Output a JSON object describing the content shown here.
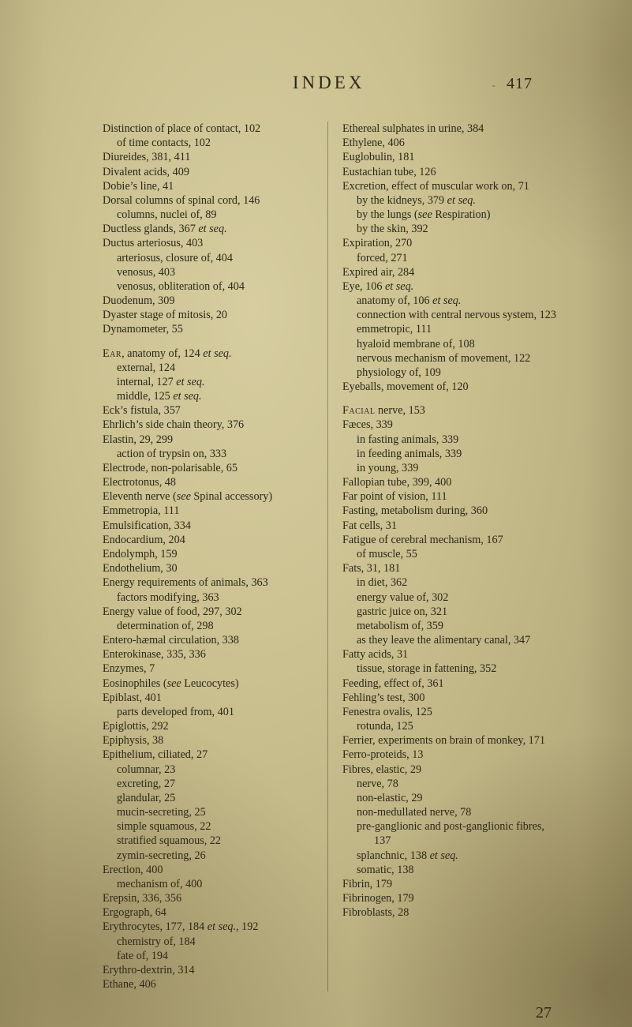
{
  "header": {
    "title": "INDEX",
    "dash": "-",
    "pagenum": "417"
  },
  "signature": "27",
  "left": [
    {
      "t": "e",
      "x": "Distinction of place of contact, 102"
    },
    {
      "t": "s1",
      "x": "of time contacts, 102"
    },
    {
      "t": "e",
      "x": "Diureides, 381, 411"
    },
    {
      "t": "e",
      "x": "Divalent acids, 409"
    },
    {
      "t": "e",
      "x": "Dobie’s line, 41"
    },
    {
      "t": "e",
      "x": "Dorsal columns of spinal cord, 146"
    },
    {
      "t": "s1",
      "x": "columns, nuclei of, 89"
    },
    {
      "t": "e",
      "x": "Ductless glands, 367 <em>et seq.</em>"
    },
    {
      "t": "e",
      "x": "Ductus arteriosus, 403"
    },
    {
      "t": "s1",
      "x": "arteriosus, closure of, 404"
    },
    {
      "t": "s1",
      "x": "venosus, 403"
    },
    {
      "t": "s1",
      "x": "venosus, obliteration of, 404"
    },
    {
      "t": "e",
      "x": "Duodenum, 309"
    },
    {
      "t": "e",
      "x": "Dyaster stage of mitosis, 20"
    },
    {
      "t": "e",
      "x": "Dynamometer, 55"
    },
    {
      "t": "gap"
    },
    {
      "t": "e",
      "x": "<span class=\"sc\">Ear</span>, anatomy of, 124 <em>et seq.</em>"
    },
    {
      "t": "s1",
      "x": "external, 124"
    },
    {
      "t": "s1",
      "x": "internal, 127 <em>et seq.</em>"
    },
    {
      "t": "s1",
      "x": "middle, 125 <em>et seq.</em>"
    },
    {
      "t": "e",
      "x": "Eck’s fistula, 357"
    },
    {
      "t": "e",
      "x": "Ehrlich’s side chain theory, 376"
    },
    {
      "t": "e",
      "x": "Elastin, 29, 299"
    },
    {
      "t": "s1",
      "x": "action of trypsin on, 333"
    },
    {
      "t": "e",
      "x": "Electrode, non-polarisable, 65"
    },
    {
      "t": "e",
      "x": "Electrotonus, 48"
    },
    {
      "t": "e",
      "x": "Eleventh nerve (<em>see</em> Spinal accessory)"
    },
    {
      "t": "e",
      "x": "Emmetropia, 111"
    },
    {
      "t": "e",
      "x": "Emulsification, 334"
    },
    {
      "t": "e",
      "x": "Endocardium, 204"
    },
    {
      "t": "e",
      "x": "Endolymph, 159"
    },
    {
      "t": "e",
      "x": "Endothelium, 30"
    },
    {
      "t": "e",
      "x": "Energy requirements of animals, 363"
    },
    {
      "t": "s1",
      "x": "factors modifying, 363"
    },
    {
      "t": "e",
      "x": "Energy value of food, 297, 302"
    },
    {
      "t": "s1",
      "x": "determination of, 298"
    },
    {
      "t": "e",
      "x": "Entero-hæmal circulation, 338"
    },
    {
      "t": "e",
      "x": "Enterokinase, 335, 336"
    },
    {
      "t": "e",
      "x": "Enzymes, 7"
    },
    {
      "t": "e",
      "x": "Eosinophiles (<em>see</em> Leucocytes)"
    },
    {
      "t": "e",
      "x": "Epiblast, 401"
    },
    {
      "t": "s1",
      "x": "parts developed from, 401"
    },
    {
      "t": "e",
      "x": "Epiglottis, 292"
    },
    {
      "t": "e",
      "x": "Epiphysis, 38"
    },
    {
      "t": "e",
      "x": "Epithelium, ciliated, 27"
    },
    {
      "t": "s1",
      "x": "columnar, 23"
    },
    {
      "t": "s1",
      "x": "excreting, 27"
    },
    {
      "t": "s1",
      "x": "glandular, 25"
    },
    {
      "t": "s1",
      "x": "mucin-secreting, 25"
    },
    {
      "t": "s1",
      "x": "simple squamous, 22"
    },
    {
      "t": "s1",
      "x": "stratified squamous, 22"
    },
    {
      "t": "s1",
      "x": "zymin-secreting, 26"
    },
    {
      "t": "e",
      "x": "Erection, 400"
    },
    {
      "t": "s1",
      "x": "mechanism of, 400"
    },
    {
      "t": "e",
      "x": "Erepsin, 336, 356"
    },
    {
      "t": "e",
      "x": "Ergograph, 64"
    },
    {
      "t": "e",
      "x": "Erythrocytes, 177, 184 <em>et seq.</em>, 192"
    },
    {
      "t": "s1",
      "x": "chemistry of, 184"
    },
    {
      "t": "s1",
      "x": "fate of, 194"
    },
    {
      "t": "e",
      "x": "Erythro-dextrin, 314"
    },
    {
      "t": "e",
      "x": "Ethane, 406"
    }
  ],
  "right": [
    {
      "t": "e",
      "x": "Ethereal sulphates in urine, 384"
    },
    {
      "t": "e",
      "x": "Ethylene, 406"
    },
    {
      "t": "e",
      "x": "Euglobulin, 181"
    },
    {
      "t": "e",
      "x": "Eustachian tube, 126"
    },
    {
      "t": "e",
      "x": "Excretion, effect of muscular work on, 71"
    },
    {
      "t": "s1",
      "x": "by the kidneys, 379 <em>et seq.</em>"
    },
    {
      "t": "s1",
      "x": "by the lungs (<em>see</em> Respiration)"
    },
    {
      "t": "s1",
      "x": "by the skin, 392"
    },
    {
      "t": "e",
      "x": "Expiration, 270"
    },
    {
      "t": "s1",
      "x": "forced, 271"
    },
    {
      "t": "e",
      "x": "Expired air, 284"
    },
    {
      "t": "e",
      "x": "Eye, 106 <em>et seq.</em>"
    },
    {
      "t": "s1",
      "x": "anatomy of, 106 <em>et seq.</em>"
    },
    {
      "t": "s1",
      "x": "connection with central nervous system, 123"
    },
    {
      "t": "s1",
      "x": "emmetropic, 111"
    },
    {
      "t": "s1",
      "x": "hyaloid membrane of, 108"
    },
    {
      "t": "s1",
      "x": "nervous mechanism of movement, 122"
    },
    {
      "t": "s1",
      "x": "physiology of, 109"
    },
    {
      "t": "e",
      "x": "Eyeballs, movement of, 120"
    },
    {
      "t": "gap"
    },
    {
      "t": "e",
      "x": "<span class=\"sc\">Facial</span> nerve, 153"
    },
    {
      "t": "e",
      "x": "Fæces, 339"
    },
    {
      "t": "s1",
      "x": "in fasting animals, 339"
    },
    {
      "t": "s1",
      "x": "in feeding animals, 339"
    },
    {
      "t": "s1",
      "x": "in young, 339"
    },
    {
      "t": "e",
      "x": "Fallopian tube, 399, 400"
    },
    {
      "t": "e",
      "x": "Far point of vision, 111"
    },
    {
      "t": "e",
      "x": "Fasting, metabolism during, 360"
    },
    {
      "t": "e",
      "x": "Fat cells, 31"
    },
    {
      "t": "e",
      "x": "Fatigue of cerebral mechanism, 167"
    },
    {
      "t": "s1",
      "x": "of muscle, 55"
    },
    {
      "t": "e",
      "x": "Fats, 31, 181"
    },
    {
      "t": "s1",
      "x": "in diet, 362"
    },
    {
      "t": "s1",
      "x": "energy value of, 302"
    },
    {
      "t": "s1",
      "x": "gastric juice on, 321"
    },
    {
      "t": "s1",
      "x": "metabolism of, 359"
    },
    {
      "t": "s1",
      "x": "as they leave the alimentary canal, 347"
    },
    {
      "t": "e",
      "x": "Fatty acids, 31"
    },
    {
      "t": "s1",
      "x": "tissue, storage in fattening, 352"
    },
    {
      "t": "e",
      "x": "Feeding, effect of, 361"
    },
    {
      "t": "e",
      "x": "Fehling’s test, 300"
    },
    {
      "t": "e",
      "x": "Fenestra ovalis, 125"
    },
    {
      "t": "s1",
      "x": "rotunda, 125"
    },
    {
      "t": "e",
      "x": "Ferrier, experiments on brain of monkey, 171"
    },
    {
      "t": "e",
      "x": "Ferro-proteids, 13"
    },
    {
      "t": "e",
      "x": "Fibres, elastic, 29"
    },
    {
      "t": "s1",
      "x": "nerve, 78"
    },
    {
      "t": "s1",
      "x": "non-elastic, 29"
    },
    {
      "t": "s1",
      "x": "non-medullated nerve, 78"
    },
    {
      "t": "s1",
      "x": "pre-ganglionic and post-ganglionic fibres, 137"
    },
    {
      "t": "s1",
      "x": "splanchnic, 138 <em>et seq.</em>"
    },
    {
      "t": "s1",
      "x": "somatic, 138"
    },
    {
      "t": "e",
      "x": "Fibrin, 179"
    },
    {
      "t": "e",
      "x": "Fibrinogen, 179"
    },
    {
      "t": "e",
      "x": "Fibroblasts, 28"
    }
  ]
}
